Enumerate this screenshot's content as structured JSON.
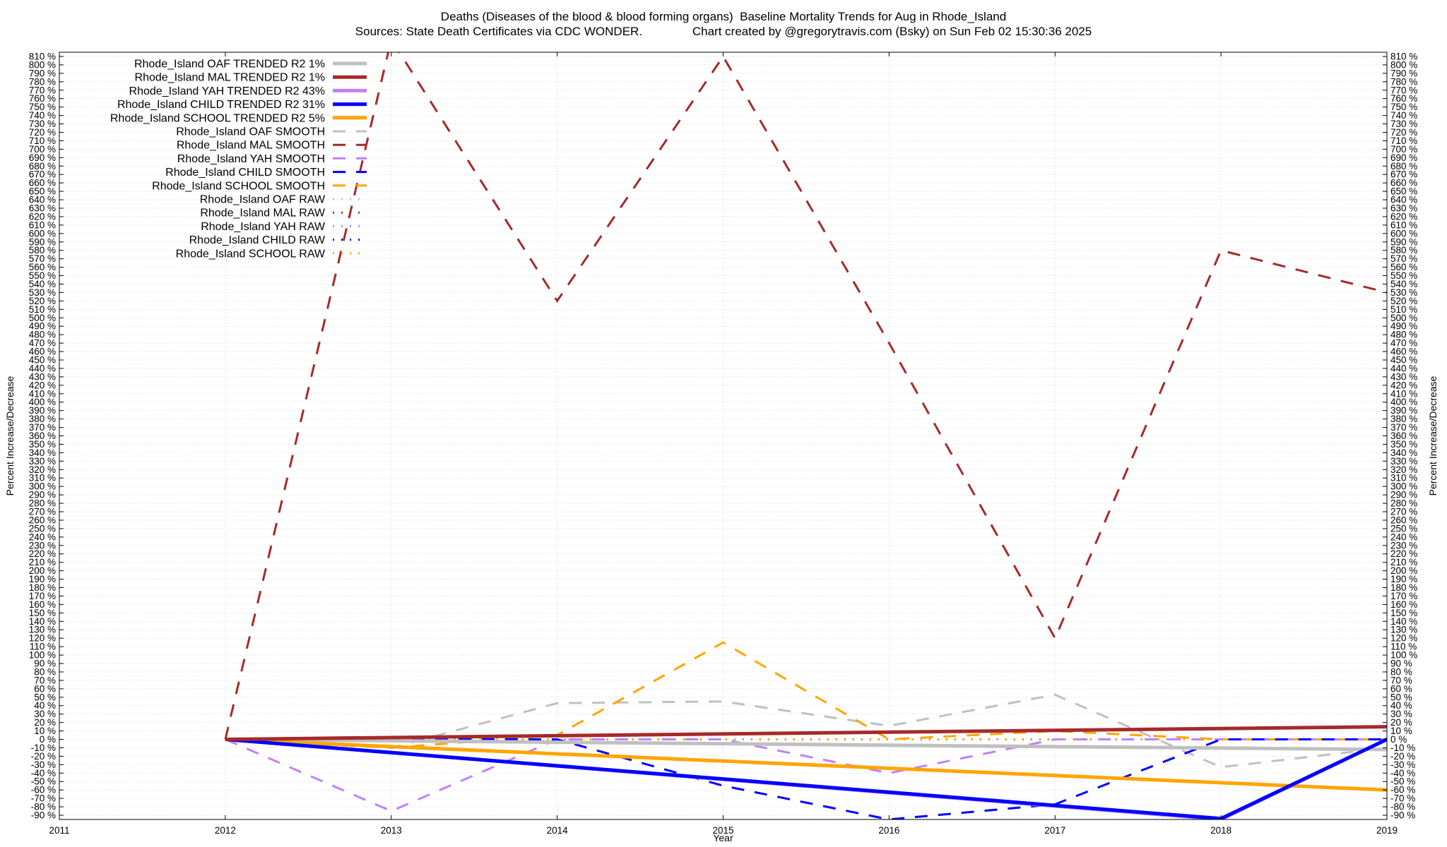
{
  "chart_data": {
    "type": "line",
    "title": "Deaths (Diseases of the blood & blood forming organs)  Baseline Mortality Trends for Aug in Rhode_Island",
    "subtitle": "Sources: State Death Certificates via CDC WONDER.               Chart created by @gregorytravis.com (Bsky) on Sun Feb 02 15:30:36 2025",
    "xlabel": "Year",
    "ylabel": "Percent Increase/Decrease",
    "y2label": "Percent Increase/Decrease",
    "xlim": [
      2011,
      2019
    ],
    "ylim": [
      -95,
      815
    ],
    "x_ticks": [
      2011,
      2012,
      2013,
      2014,
      2015,
      2016,
      2017,
      2018,
      2019
    ],
    "y_ticks": {
      "start": -90,
      "end": 810,
      "step": 10,
      "suffix": " %"
    },
    "grid": true,
    "legend_position": "top-left",
    "series": [
      {
        "name": "Rhode_Island OAF TRENDED R2   1%",
        "style": "trended",
        "color": "#c0c0c0",
        "x": [
          2012,
          2019
        ],
        "y": [
          0,
          -12
        ]
      },
      {
        "name": "Rhode_Island MAL TRENDED R2   1%",
        "style": "trended",
        "color": "#a52a2a",
        "x": [
          2012,
          2019
        ],
        "y": [
          0,
          15
        ]
      },
      {
        "name": "Rhode_Island YAH TRENDED R2  43%",
        "style": "trended",
        "color": "#c080ff",
        "x": [
          2012,
          2018,
          2019
        ],
        "y": [
          0,
          -95,
          0
        ]
      },
      {
        "name": "Rhode_Island CHILD TRENDED R2  31%",
        "style": "trended",
        "color": "#0000ff",
        "x": [
          2012,
          2018,
          2019
        ],
        "y": [
          0,
          -94,
          0
        ]
      },
      {
        "name": "Rhode_Island SCHOOL TRENDED R2   5%",
        "style": "trended",
        "color": "#ffa500",
        "x": [
          2012,
          2019
        ],
        "y": [
          0,
          -60
        ]
      },
      {
        "name": "Rhode_Island OAF SMOOTH",
        "style": "smooth",
        "color": "#c0c0c0",
        "x": [
          2012,
          2013,
          2014,
          2015,
          2016,
          2017,
          2018,
          2019
        ],
        "y": [
          0,
          -10,
          43,
          45,
          16,
          53,
          -33,
          -10
        ]
      },
      {
        "name": "Rhode_Island MAL SMOOTH",
        "style": "smooth",
        "color": "#a52a2a",
        "x": [
          2012,
          2013,
          2014,
          2015,
          2016,
          2017,
          2018,
          2019
        ],
        "y": [
          0,
          830,
          520,
          810,
          470,
          120,
          580,
          530
        ]
      },
      {
        "name": "Rhode_Island YAH SMOOTH",
        "style": "smooth",
        "color": "#c080ff",
        "x": [
          2012,
          2013,
          2014,
          2015,
          2016,
          2017,
          2018,
          2019
        ],
        "y": [
          0,
          -85,
          0,
          0,
          -40,
          0,
          0,
          0
        ]
      },
      {
        "name": "Rhode_Island CHILD SMOOTH",
        "style": "smooth",
        "color": "#0000ff",
        "x": [
          2012,
          2013,
          2014,
          2015,
          2016,
          2017,
          2018,
          2019
        ],
        "y": [
          0,
          0,
          0,
          -55,
          -95,
          -77,
          0,
          0
        ]
      },
      {
        "name": "Rhode_Island SCHOOL SMOOTH",
        "style": "smooth",
        "color": "#ffa500",
        "x": [
          2012,
          2013,
          2014,
          2015,
          2016,
          2017,
          2018,
          2019
        ],
        "y": [
          0,
          -10,
          5,
          115,
          0,
          10,
          0,
          0
        ]
      },
      {
        "name": "Rhode_Island OAF RAW",
        "style": "raw",
        "color": "#c0c0c0",
        "x": [
          2012,
          2019
        ],
        "y": [
          0,
          0
        ]
      },
      {
        "name": "Rhode_Island MAL RAW",
        "style": "raw",
        "color": "#a52a2a",
        "x": [
          2012,
          2019
        ],
        "y": [
          0,
          0
        ]
      },
      {
        "name": "Rhode_Island YAH RAW",
        "style": "raw",
        "color": "#c080ff",
        "x": [
          2012,
          2019
        ],
        "y": [
          0,
          0
        ]
      },
      {
        "name": "Rhode_Island CHILD RAW",
        "style": "raw",
        "color": "#0000ff",
        "x": [
          2012,
          2019
        ],
        "y": [
          0,
          0
        ]
      },
      {
        "name": "Rhode_Island SCHOOL RAW",
        "style": "raw",
        "color": "#ffa500",
        "x": [
          2012,
          2019
        ],
        "y": [
          0,
          0
        ]
      }
    ]
  }
}
